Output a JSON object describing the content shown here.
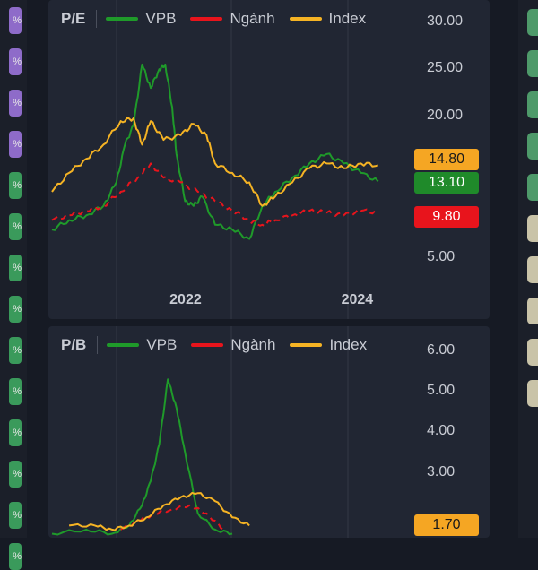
{
  "left_pills": [
    {
      "color": "#8e6bc9",
      "text": "%"
    },
    {
      "color": "#8e6bc9",
      "text": "%"
    },
    {
      "color": "#8e6bc9",
      "text": "%"
    },
    {
      "color": "#8e6bc9",
      "text": "%"
    },
    {
      "color": "#3a9a5b",
      "text": "%"
    },
    {
      "color": "#3a9a5b",
      "text": "%"
    },
    {
      "color": "#3a9a5b",
      "text": "%"
    },
    {
      "color": "#3a9a5b",
      "text": "%"
    },
    {
      "color": "#3a9a5b",
      "text": "%"
    },
    {
      "color": "#3a9a5b",
      "text": "%"
    },
    {
      "color": "#3a9a5b",
      "text": "%"
    },
    {
      "color": "#3a9a5b",
      "text": "%"
    },
    {
      "color": "#3a9a5b",
      "text": "%"
    },
    {
      "color": "#3a9a5b",
      "text": "%"
    }
  ],
  "right_pills": [
    "#4e9a6a",
    "#4e9a6a",
    "#4e9a6a",
    "#4e9a6a",
    "#4e9a6a",
    "#c9c3a8",
    "#c9c3a8",
    "#c9c3a8",
    "#c9c3a8",
    "#c9c3a8"
  ],
  "chart_data": [
    {
      "type": "line",
      "title": "P/E",
      "legend": [
        "VPB",
        "Ngành",
        "Index"
      ],
      "y_ticks": [
        "30.00",
        "25.00",
        "20.00",
        "5.00"
      ],
      "ylim": [
        2.5,
        31
      ],
      "x_ticks": [
        {
          "label": "2022",
          "x": 2022.0
        },
        {
          "label": "2024",
          "x": 2024.0
        }
      ],
      "xlim": [
        2020.4,
        2024.6
      ],
      "badges": [
        {
          "label": "14.80",
          "value": 14.8,
          "color": "#f5a623",
          "text_color": "#1a1a1a"
        },
        {
          "label": "13.10",
          "value": 13.1,
          "color": "#1f8a2a",
          "text_color": "#ffffff"
        },
        {
          "label": "9.80",
          "value": 9.8,
          "color": "#e8141c",
          "text_color": "#ffffff"
        }
      ],
      "series": [
        {
          "name": "VPB",
          "color": "#1f9a2a",
          "dash": false,
          "points": [
            [
              2020.4,
              8.0
            ],
            [
              2020.6,
              9.0
            ],
            [
              2020.8,
              9.5
            ],
            [
              2021.0,
              10.5
            ],
            [
              2021.15,
              13
            ],
            [
              2021.25,
              17
            ],
            [
              2021.35,
              19
            ],
            [
              2021.45,
              25.5
            ],
            [
              2021.55,
              23
            ],
            [
              2021.65,
              25
            ],
            [
              2021.72,
              25.5
            ],
            [
              2021.8,
              21
            ],
            [
              2021.85,
              16
            ],
            [
              2021.95,
              11
            ],
            [
              2022.05,
              10.5
            ],
            [
              2022.15,
              11.5
            ],
            [
              2022.3,
              8.5
            ],
            [
              2022.5,
              8.0
            ],
            [
              2022.7,
              7.0
            ],
            [
              2022.85,
              10.5
            ],
            [
              2023.0,
              12
            ],
            [
              2023.2,
              13.5
            ],
            [
              2023.4,
              15
            ],
            [
              2023.6,
              16
            ],
            [
              2023.8,
              15
            ],
            [
              2024.0,
              14
            ],
            [
              2024.2,
              13.1
            ]
          ]
        },
        {
          "name": "Ngành",
          "color": "#e8141c",
          "dash": true,
          "points": [
            [
              2020.4,
              9.0
            ],
            [
              2020.6,
              9.5
            ],
            [
              2020.8,
              10.0
            ],
            [
              2021.0,
              10.5
            ],
            [
              2021.2,
              12
            ],
            [
              2021.4,
              13.5
            ],
            [
              2021.55,
              15
            ],
            [
              2021.7,
              13.5
            ],
            [
              2021.9,
              13
            ],
            [
              2022.1,
              12
            ],
            [
              2022.3,
              11
            ],
            [
              2022.5,
              10
            ],
            [
              2022.7,
              9.0
            ],
            [
              2022.85,
              8.5
            ],
            [
              2023.0,
              9.0
            ],
            [
              2023.2,
              9.5
            ],
            [
              2023.4,
              10
            ],
            [
              2023.6,
              9.8
            ],
            [
              2023.8,
              9.5
            ],
            [
              2024.0,
              10
            ],
            [
              2024.2,
              9.8
            ]
          ]
        },
        {
          "name": "Index",
          "color": "#f5b324",
          "dash": false,
          "points": [
            [
              2020.4,
              12
            ],
            [
              2020.6,
              14
            ],
            [
              2020.8,
              15.5
            ],
            [
              2021.0,
              17
            ],
            [
              2021.2,
              19.5
            ],
            [
              2021.35,
              19.8
            ],
            [
              2021.45,
              17
            ],
            [
              2021.55,
              19.5
            ],
            [
              2021.7,
              17.5
            ],
            [
              2021.9,
              18
            ],
            [
              2022.05,
              19.2
            ],
            [
              2022.2,
              18
            ],
            [
              2022.3,
              15
            ],
            [
              2022.5,
              14
            ],
            [
              2022.7,
              13
            ],
            [
              2022.85,
              10.5
            ],
            [
              2023.0,
              11.5
            ],
            [
              2023.2,
              13
            ],
            [
              2023.4,
              14.5
            ],
            [
              2023.6,
              15
            ],
            [
              2023.8,
              14.5
            ],
            [
              2024.0,
              15
            ],
            [
              2024.2,
              14.8
            ]
          ]
        }
      ]
    },
    {
      "type": "line",
      "title": "P/B",
      "legend": [
        "VPB",
        "Ngành",
        "Index"
      ],
      "y_ticks": [
        "6.00",
        "5.00",
        "4.00",
        "3.00"
      ],
      "ylim": [
        1.4,
        6.3
      ],
      "xlim": [
        2020.4,
        2024.6
      ],
      "badges": [
        {
          "label": "1.70",
          "value": 1.7,
          "color": "#f5a623",
          "text_color": "#1a1a1a"
        }
      ],
      "series": [
        {
          "name": "VPB",
          "color": "#1f9a2a",
          "dash": false,
          "points": [
            [
              2020.4,
              1.5
            ],
            [
              2020.8,
              1.6
            ],
            [
              2021.1,
              1.5
            ],
            [
              2021.3,
              1.7
            ],
            [
              2021.45,
              2.2
            ],
            [
              2021.55,
              2.8
            ],
            [
              2021.65,
              3.7
            ],
            [
              2021.75,
              5.3
            ],
            [
              2021.85,
              4.6
            ],
            [
              2021.95,
              3.5
            ],
            [
              2022.1,
              2.0
            ],
            [
              2022.3,
              1.6
            ],
            [
              2022.5,
              1.5
            ]
          ]
        },
        {
          "name": "Ngành",
          "color": "#e8141c",
          "dash": true,
          "points": [
            [
              2021.2,
              1.6
            ],
            [
              2021.4,
              1.8
            ],
            [
              2021.6,
              2.0
            ],
            [
              2021.8,
              2.1
            ],
            [
              2022.0,
              2.2
            ],
            [
              2022.2,
              2.0
            ],
            [
              2022.4,
              1.6
            ]
          ]
        },
        {
          "name": "Index",
          "color": "#f5b324",
          "dash": false,
          "points": [
            [
              2020.6,
              1.7
            ],
            [
              2020.9,
              1.7
            ],
            [
              2021.1,
              1.6
            ],
            [
              2021.3,
              1.7
            ],
            [
              2021.5,
              1.9
            ],
            [
              2021.7,
              2.2
            ],
            [
              2021.9,
              2.4
            ],
            [
              2022.1,
              2.5
            ],
            [
              2022.3,
              2.3
            ],
            [
              2022.5,
              1.9
            ],
            [
              2022.7,
              1.7
            ]
          ]
        }
      ]
    }
  ]
}
